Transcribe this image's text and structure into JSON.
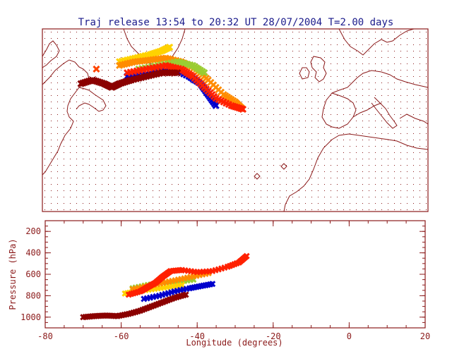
{
  "title": "Traj release 13:54 to 20:32 UT 28/07/2004    T=2.00 days",
  "colors": {
    "axis": "#8b1a1a",
    "dots": "#8b1a1a",
    "coast": "#8b1a1a",
    "title": "#1a1a8b"
  },
  "chart_data": [
    {
      "type": "scatter",
      "panel": "map",
      "xlim": [
        -80,
        20
      ],
      "ylim": [
        20,
        70
      ],
      "grid": true,
      "series": [
        {
          "color": "#ffd200",
          "points": [
            [
              -60,
              61
            ],
            [
              -56,
              62
            ],
            [
              -52,
              63
            ],
            [
              -49,
              64
            ],
            [
              -47,
              65
            ]
          ]
        },
        {
          "color": "#ff8c00",
          "points": [
            [
              -60,
              60
            ],
            [
              -56,
              61
            ],
            [
              -52,
              61.5
            ],
            [
              -48,
              62
            ],
            [
              -44,
              61
            ],
            [
              -40,
              59
            ],
            [
              -37,
              56
            ],
            [
              -33,
              52
            ],
            [
              -30,
              50
            ],
            [
              -28,
              48
            ]
          ]
        },
        {
          "color": "#9acd32",
          "points": [
            [
              -55,
              59
            ],
            [
              -50,
              60
            ],
            [
              -45,
              61
            ],
            [
              -41,
              60
            ],
            [
              -38,
              58
            ]
          ]
        },
        {
          "color": "#0000cd",
          "points": [
            [
              -58,
              57
            ],
            [
              -52,
              58
            ],
            [
              -46,
              59
            ],
            [
              -42,
              57
            ],
            [
              -39,
              55
            ],
            [
              -37,
              52
            ],
            [
              -35,
              49
            ]
          ]
        },
        {
          "color": "#ff2000",
          "points": [
            [
              -58,
              58
            ],
            [
              -53,
              59
            ],
            [
              -48,
              60
            ],
            [
              -44,
              59
            ],
            [
              -41,
              57
            ],
            [
              -38,
              54
            ],
            [
              -35,
              51
            ],
            [
              -31,
              49
            ],
            [
              -28,
              48
            ]
          ]
        },
        {
          "color": "#8b0000",
          "points": [
            [
              -70,
              55
            ],
            [
              -67,
              56
            ],
            [
              -64,
              55
            ],
            [
              -62,
              54
            ],
            [
              -60,
              55
            ],
            [
              -57,
              56
            ],
            [
              -53,
              57
            ],
            [
              -49,
              58
            ],
            [
              -45,
              58
            ]
          ]
        },
        {
          "color": "#ff4500",
          "points": [
            [
              -66,
              59
            ]
          ]
        }
      ]
    },
    {
      "type": "scatter",
      "panel": "profile",
      "xlabel": "Longitude  (degrees)",
      "ylabel": "Pressure  (hPa)",
      "xlim": [
        -80,
        20
      ],
      "ylim": [
        1100,
        100
      ],
      "xticks": [
        -80,
        -60,
        -40,
        -20,
        0,
        20
      ],
      "yticks": [
        200,
        400,
        600,
        800,
        1000
      ],
      "series": [
        {
          "color": "#9acd32",
          "points": [
            [
              -57,
              730
            ],
            [
              -53,
              700
            ],
            [
              -49,
              680
            ],
            [
              -45,
              670
            ],
            [
              -41,
              650
            ]
          ]
        },
        {
          "color": "#ffd200",
          "points": [
            [
              -59,
              780
            ],
            [
              -56,
              760
            ],
            [
              -52,
              740
            ],
            [
              -48,
              720
            ],
            [
              -44,
              700
            ]
          ]
        },
        {
          "color": "#ff8c00",
          "points": [
            [
              -57,
              740
            ],
            [
              -53,
              710
            ],
            [
              -49,
              680
            ],
            [
              -45,
              650
            ],
            [
              -41,
              620
            ],
            [
              -37,
              590
            ]
          ]
        },
        {
          "color": "#0000cd",
          "points": [
            [
              -54,
              830
            ],
            [
              -50,
              800
            ],
            [
              -46,
              760
            ],
            [
              -42,
              730
            ],
            [
              -39,
              710
            ],
            [
              -36,
              690
            ]
          ]
        },
        {
          "color": "#ff2000",
          "points": [
            [
              -58,
              790
            ],
            [
              -55,
              760
            ],
            [
              -53,
              720
            ],
            [
              -51,
              680
            ],
            [
              -49,
              620
            ],
            [
              -47,
              570
            ],
            [
              -44,
              560
            ],
            [
              -40,
              580
            ],
            [
              -36,
              570
            ],
            [
              -32,
              530
            ],
            [
              -29,
              490
            ],
            [
              -27,
              430
            ]
          ]
        },
        {
          "color": "#8b0000",
          "points": [
            [
              -70,
              1000
            ],
            [
              -67,
              990
            ],
            [
              -64,
              985
            ],
            [
              -61,
              990
            ],
            [
              -58,
              970
            ],
            [
              -55,
              940
            ],
            [
              -52,
              900
            ],
            [
              -49,
              860
            ],
            [
              -46,
              820
            ],
            [
              -43,
              790
            ]
          ]
        }
      ]
    }
  ]
}
